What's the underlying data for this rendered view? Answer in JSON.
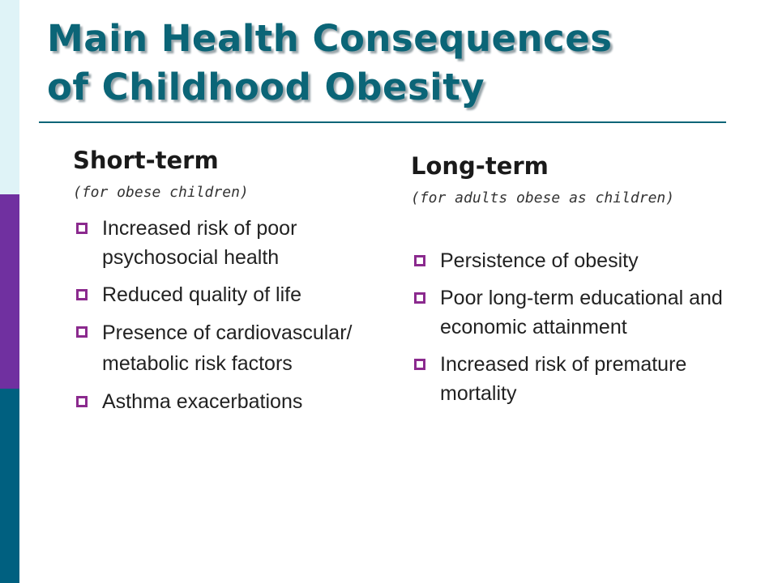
{
  "slide": {
    "title_line1": "Main Health Consequences",
    "title_line2": "of Childhood Obesity",
    "accent_color": "#0b6577",
    "bullet_color": "#8b2a8e",
    "side_colors": [
      "#dff3f7",
      "#7030a0",
      "#006080"
    ]
  },
  "short_term": {
    "heading": "Short-term",
    "subheading": "(for obese children)",
    "items": [
      "Increased risk of poor psychosocial health",
      "Reduced quality of life",
      "Presence of cardiovascular/ metabolic risk factors",
      "Asthma exacerbations"
    ]
  },
  "long_term": {
    "heading": "Long-term",
    "subheading": "(for adults obese as children)",
    "items": [
      "Persistence of obesity",
      "Poor long-term educational and economic attainment",
      "Increased risk of premature mortality"
    ]
  },
  "icons": {
    "bullet": "square-bullet-icon"
  }
}
